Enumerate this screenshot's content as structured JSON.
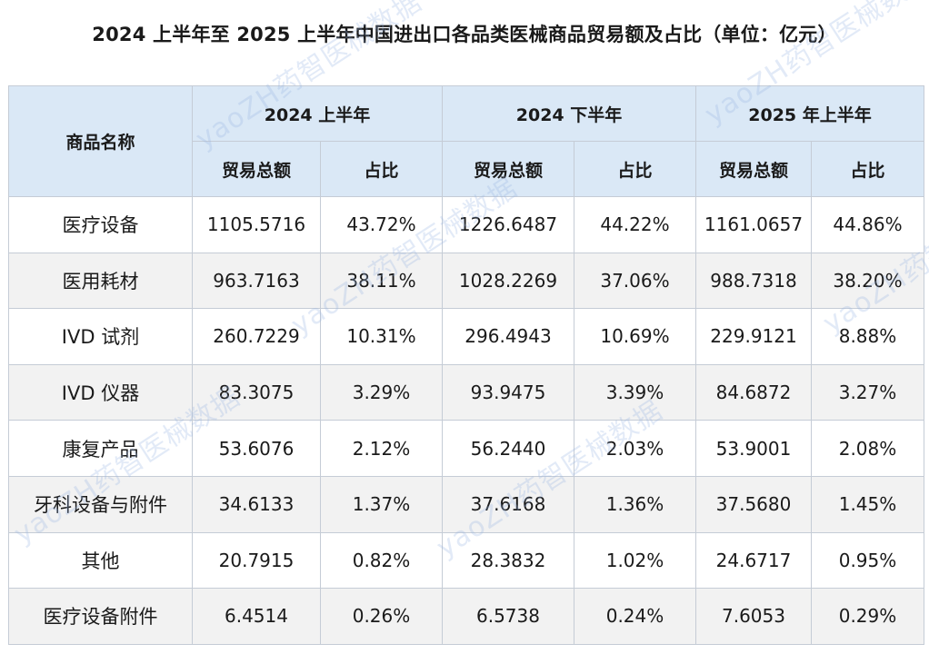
{
  "title": "2024 上半年至 2025 上半年中国进出口各品类医械商品贸易额及占比（单位：亿元）",
  "table": {
    "name_header": "商品名称",
    "periods": [
      "2024 上半年",
      "2024 下半年",
      "2025 年上半年"
    ],
    "sub_headers": [
      "贸易总额",
      "占比"
    ],
    "rows": [
      {
        "name": "医疗设备",
        "v1": "1105.5716",
        "p1": "43.72%",
        "v2": "1226.6487",
        "p2": "44.22%",
        "v3": "1161.0657",
        "p3": "44.86%"
      },
      {
        "name": "医用耗材",
        "v1": "963.7163",
        "p1": "38.11%",
        "v2": "1028.2269",
        "p2": "37.06%",
        "v3": "988.7318",
        "p3": "38.20%"
      },
      {
        "name": "IVD 试剂",
        "v1": "260.7229",
        "p1": "10.31%",
        "v2": "296.4943",
        "p2": "10.69%",
        "v3": "229.9121",
        "p3": "8.88%"
      },
      {
        "name": "IVD 仪器",
        "v1": "83.3075",
        "p1": "3.29%",
        "v2": "93.9475",
        "p2": "3.39%",
        "v3": "84.6872",
        "p3": "3.27%"
      },
      {
        "name": "康复产品",
        "v1": "53.6076",
        "p1": "2.12%",
        "v2": "56.2440",
        "p2": "2.03%",
        "v3": "53.9001",
        "p3": "2.08%"
      },
      {
        "name": "牙科设备与附件",
        "v1": "34.6133",
        "p1": "1.37%",
        "v2": "37.6168",
        "p2": "1.36%",
        "v3": "37.5680",
        "p3": "1.45%"
      },
      {
        "name": "其他",
        "v1": "20.7915",
        "p1": "0.82%",
        "v2": "28.3832",
        "p2": "1.02%",
        "v3": "24.6717",
        "p3": "0.95%"
      },
      {
        "name": "医疗设备附件",
        "v1": "6.4514",
        "p1": "0.26%",
        "v2": "6.5738",
        "p2": "0.24%",
        "v3": "7.6053",
        "p3": "0.29%"
      }
    ]
  },
  "watermark": "yaoZH药智医械数据"
}
